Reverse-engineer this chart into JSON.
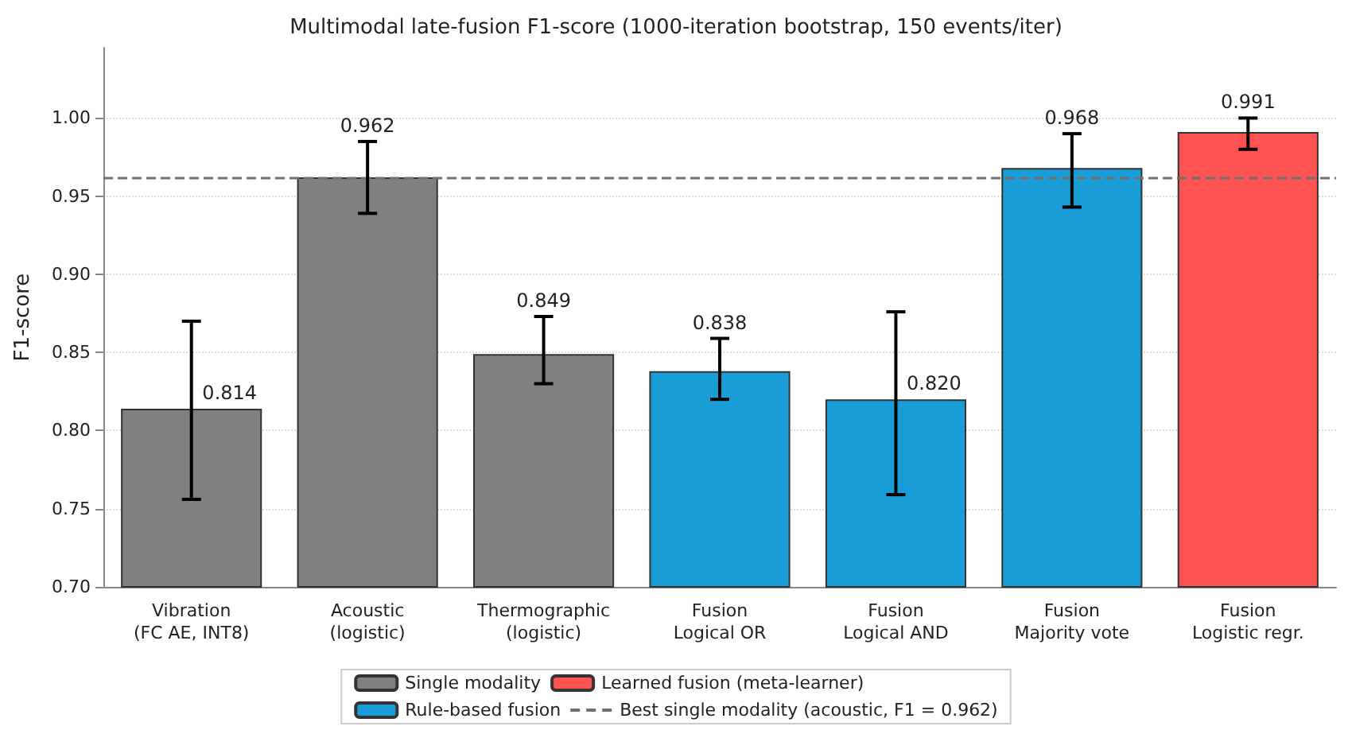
{
  "chart_data": {
    "type": "bar",
    "title": "Multimodal late-fusion F1-score (1000-iteration bootstrap, 150 events/iter)",
    "ylabel": "F1-score",
    "categories": [
      "Vibration\n(FC AE, INT8)",
      "Acoustic\n(logistic)",
      "Thermographic\n(logistic)",
      "Fusion\nLogical OR",
      "Fusion\nLogical AND",
      "Fusion\nMajority vote",
      "Fusion\nLogistic regr."
    ],
    "series": [
      {
        "name": "Single modality",
        "color": "#808080",
        "values": [
          0.814,
          0.962,
          0.849,
          null,
          null,
          null,
          null
        ],
        "value_labels": [
          "0.814",
          "0.962",
          "0.849",
          null,
          null,
          null,
          null
        ],
        "errors": [
          [
            0.756,
            0.87
          ],
          [
            0.939,
            0.985
          ],
          [
            0.83,
            0.873
          ],
          null,
          null,
          null,
          null
        ]
      },
      {
        "name": "Rule-based fusion",
        "color": "#1a9cd6",
        "values": [
          null,
          null,
          null,
          0.838,
          0.82,
          0.968,
          null
        ],
        "value_labels": [
          null,
          null,
          null,
          "0.838",
          "0.820",
          "0.968",
          null
        ],
        "errors": [
          null,
          null,
          null,
          [
            0.82,
            0.859
          ],
          [
            0.759,
            0.876
          ],
          [
            0.943,
            0.99
          ],
          null
        ]
      },
      {
        "name": "Learned fusion (meta-learner)",
        "color": "#ff5252",
        "values": [
          null,
          null,
          null,
          null,
          null,
          null,
          0.991
        ],
        "value_labels": [
          null,
          null,
          null,
          null,
          null,
          null,
          "0.991"
        ],
        "errors": [
          null,
          null,
          null,
          null,
          null,
          null,
          [
            0.98,
            1.0
          ]
        ]
      }
    ],
    "ylim": [
      0.7,
      1.045
    ],
    "yticks": [
      {
        "value": 0.7,
        "label": "0.70"
      },
      0.75,
      {
        "value": 0.8,
        "label": "0.80"
      },
      0.85,
      {
        "value": 0.9,
        "label": "0.90"
      },
      0.95,
      {
        "value": 1.0,
        "label": "1.00"
      }
    ],
    "ref_lines": [
      {
        "axis": "y",
        "value": 0.962,
        "label": "Best single modality (acoustic, F1 = 0.962)",
        "color": "#707070",
        "line_style": "dashed"
      }
    ],
    "grid": "y",
    "legend": "bottom"
  }
}
